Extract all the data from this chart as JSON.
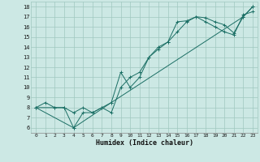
{
  "xlabel": "Humidex (Indice chaleur)",
  "bg_color": "#cce8e4",
  "plot_bg_color": "#cce8e4",
  "xlabel_bg_color": "#a0c8c0",
  "grid_color": "#a0c8c0",
  "line_color": "#1a6e64",
  "xlim": [
    -0.5,
    23.5
  ],
  "ylim": [
    5.5,
    18.5
  ],
  "xticks": [
    0,
    1,
    2,
    3,
    4,
    5,
    6,
    7,
    8,
    9,
    10,
    11,
    12,
    13,
    14,
    15,
    16,
    17,
    18,
    19,
    20,
    21,
    22,
    23
  ],
  "yticks": [
    6,
    7,
    8,
    9,
    10,
    11,
    12,
    13,
    14,
    15,
    16,
    17,
    18
  ],
  "line1_x": [
    0,
    1,
    2,
    3,
    4,
    5,
    6,
    7,
    8,
    9,
    10,
    11,
    12,
    13,
    14,
    15,
    16,
    17,
    18,
    19,
    20,
    21,
    22,
    23
  ],
  "line1_y": [
    8.0,
    8.5,
    8.0,
    8.0,
    6.0,
    7.5,
    7.5,
    8.0,
    8.5,
    11.5,
    10.0,
    11.0,
    13.0,
    13.8,
    14.5,
    16.5,
    16.6,
    17.0,
    16.9,
    16.5,
    16.2,
    15.4,
    17.0,
    18.0
  ],
  "line2_x": [
    0,
    2,
    3,
    4,
    5,
    6,
    7,
    8,
    9,
    10,
    11,
    12,
    13,
    14,
    15,
    16,
    17,
    18,
    19,
    20,
    21,
    22,
    23
  ],
  "line2_y": [
    8.0,
    8.0,
    8.0,
    7.5,
    8.0,
    7.5,
    8.0,
    7.5,
    10.0,
    11.0,
    11.5,
    13.0,
    14.0,
    14.5,
    15.5,
    16.5,
    17.0,
    16.5,
    16.0,
    15.5,
    15.2,
    17.2,
    17.5
  ],
  "line3_x": [
    0,
    4,
    8,
    22,
    23
  ],
  "line3_y": [
    8.0,
    6.0,
    8.5,
    17.0,
    18.0
  ]
}
